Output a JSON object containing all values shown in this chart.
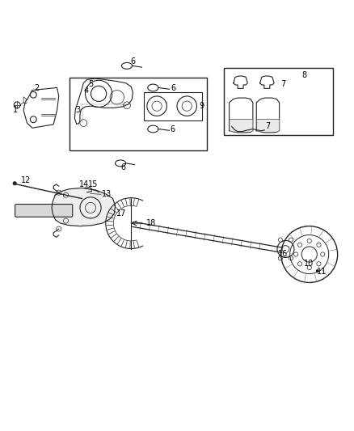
{
  "background_color": "#ffffff",
  "figure_width": 4.38,
  "figure_height": 5.33,
  "dpi": 100,
  "dark": "#222222",
  "lw": 0.8
}
